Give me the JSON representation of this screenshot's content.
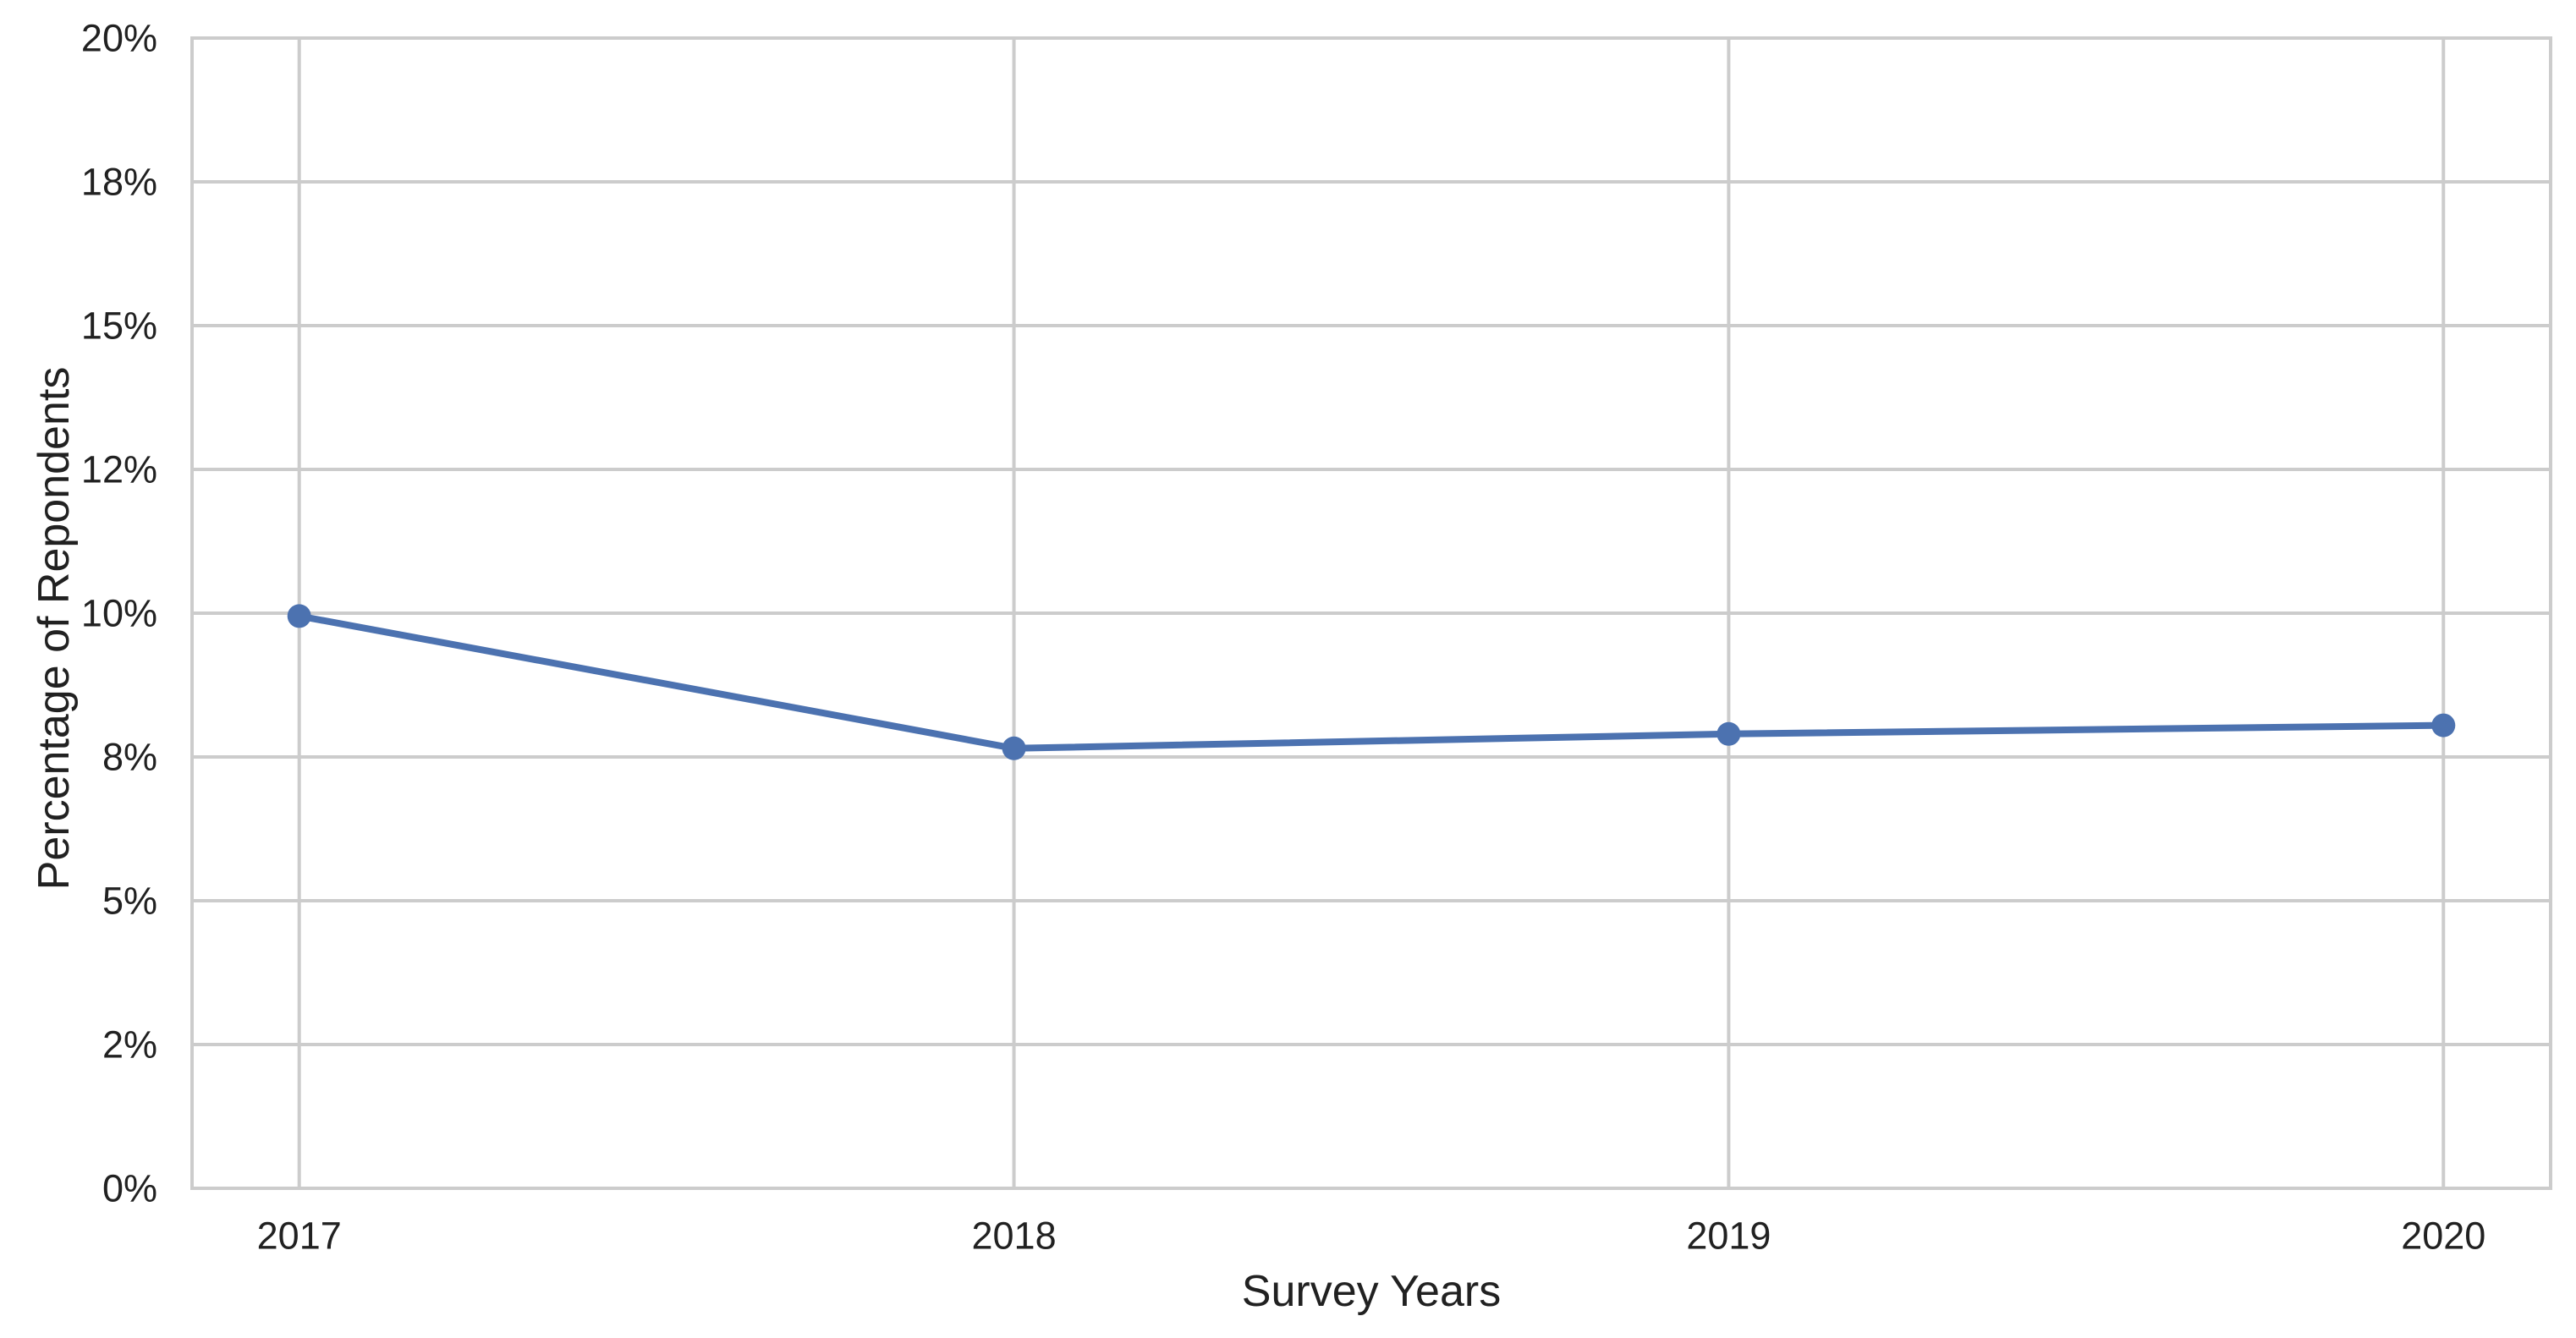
{
  "chart_data": {
    "type": "line",
    "title": "",
    "xlabel": "Survey Years",
    "ylabel": "Percentage of Repondents",
    "categories": [
      "2017",
      "2018",
      "2019",
      "2020"
    ],
    "values": [
      9.95,
      7.65,
      7.9,
      8.05
    ],
    "unit": "%",
    "y_axis": {
      "min": 0,
      "max": 20,
      "tick_positions": [
        0,
        2.5,
        5,
        7.5,
        10,
        12.5,
        15,
        17.5,
        20
      ],
      "tick_labels": [
        "0%",
        "2%",
        "5%",
        "8%",
        "10%",
        "12%",
        "15%",
        "18%",
        "20%"
      ]
    },
    "x_axis": {
      "tick_labels": [
        "2017",
        "2018",
        "2019",
        "2020"
      ]
    },
    "grid": true,
    "legend": false,
    "colors": {
      "line": "#4c72b0",
      "marker": "#4c72b0",
      "grid": "#cccccc",
      "spine": "#cccccc",
      "text": "#212121",
      "background": "#ffffff"
    }
  }
}
